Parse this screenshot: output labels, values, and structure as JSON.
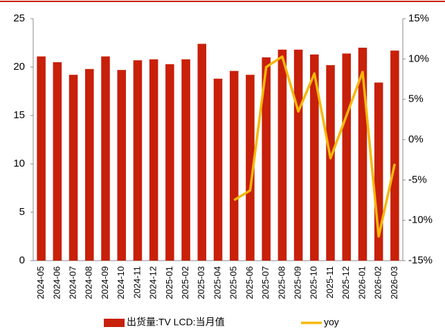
{
  "chart_data": {
    "type": "bar_line",
    "categories": [
      "2024-05",
      "2024-06",
      "2024-07",
      "2024-08",
      "2024-09",
      "2024-10",
      "2024-11",
      "2024-12",
      "2025-01",
      "2025-02",
      "2025-03",
      "2025-04",
      "2025-05",
      "2025-06",
      "2025-07",
      "2025-08",
      "2025-09",
      "2025-10",
      "2025-11",
      "2025-12",
      "2026-01",
      "2026-02",
      "2026-03"
    ],
    "series": [
      {
        "name": "出货量:TV LCD:当月值",
        "type": "bar",
        "color": "#c8200a",
        "values": [
          21.1,
          20.5,
          19.2,
          19.8,
          21.1,
          19.7,
          20.7,
          20.8,
          20.3,
          20.8,
          22.4,
          18.8,
          19.6,
          19.2,
          21.0,
          21.8,
          21.8,
          21.3,
          20.2,
          21.4,
          22.0,
          18.4,
          21.7
        ]
      },
      {
        "name": "yoy",
        "type": "line",
        "axis": "y2",
        "color": "#f5b80a",
        "values": [
          null,
          null,
          null,
          null,
          null,
          null,
          null,
          null,
          null,
          null,
          null,
          null,
          -7.5,
          -6.3,
          9.0,
          10.3,
          3.5,
          8.2,
          -2.3,
          3.0,
          8.4,
          -12.0,
          -3.0
        ]
      }
    ],
    "ylim": [
      0,
      25
    ],
    "yticks": [
      0,
      5,
      10,
      15,
      20,
      25
    ],
    "y2lim": [
      -15,
      15
    ],
    "y2ticks": [
      {
        "value": -15,
        "label": "-15%"
      },
      {
        "value": -10,
        "label": "-10%"
      },
      {
        "value": -5,
        "label": "-5%"
      },
      {
        "value": 0,
        "label": "0%"
      },
      {
        "value": 5,
        "label": "5%"
      },
      {
        "value": 10,
        "label": "10%"
      },
      {
        "value": 15,
        "label": "15%"
      }
    ],
    "legend": "bottom"
  }
}
